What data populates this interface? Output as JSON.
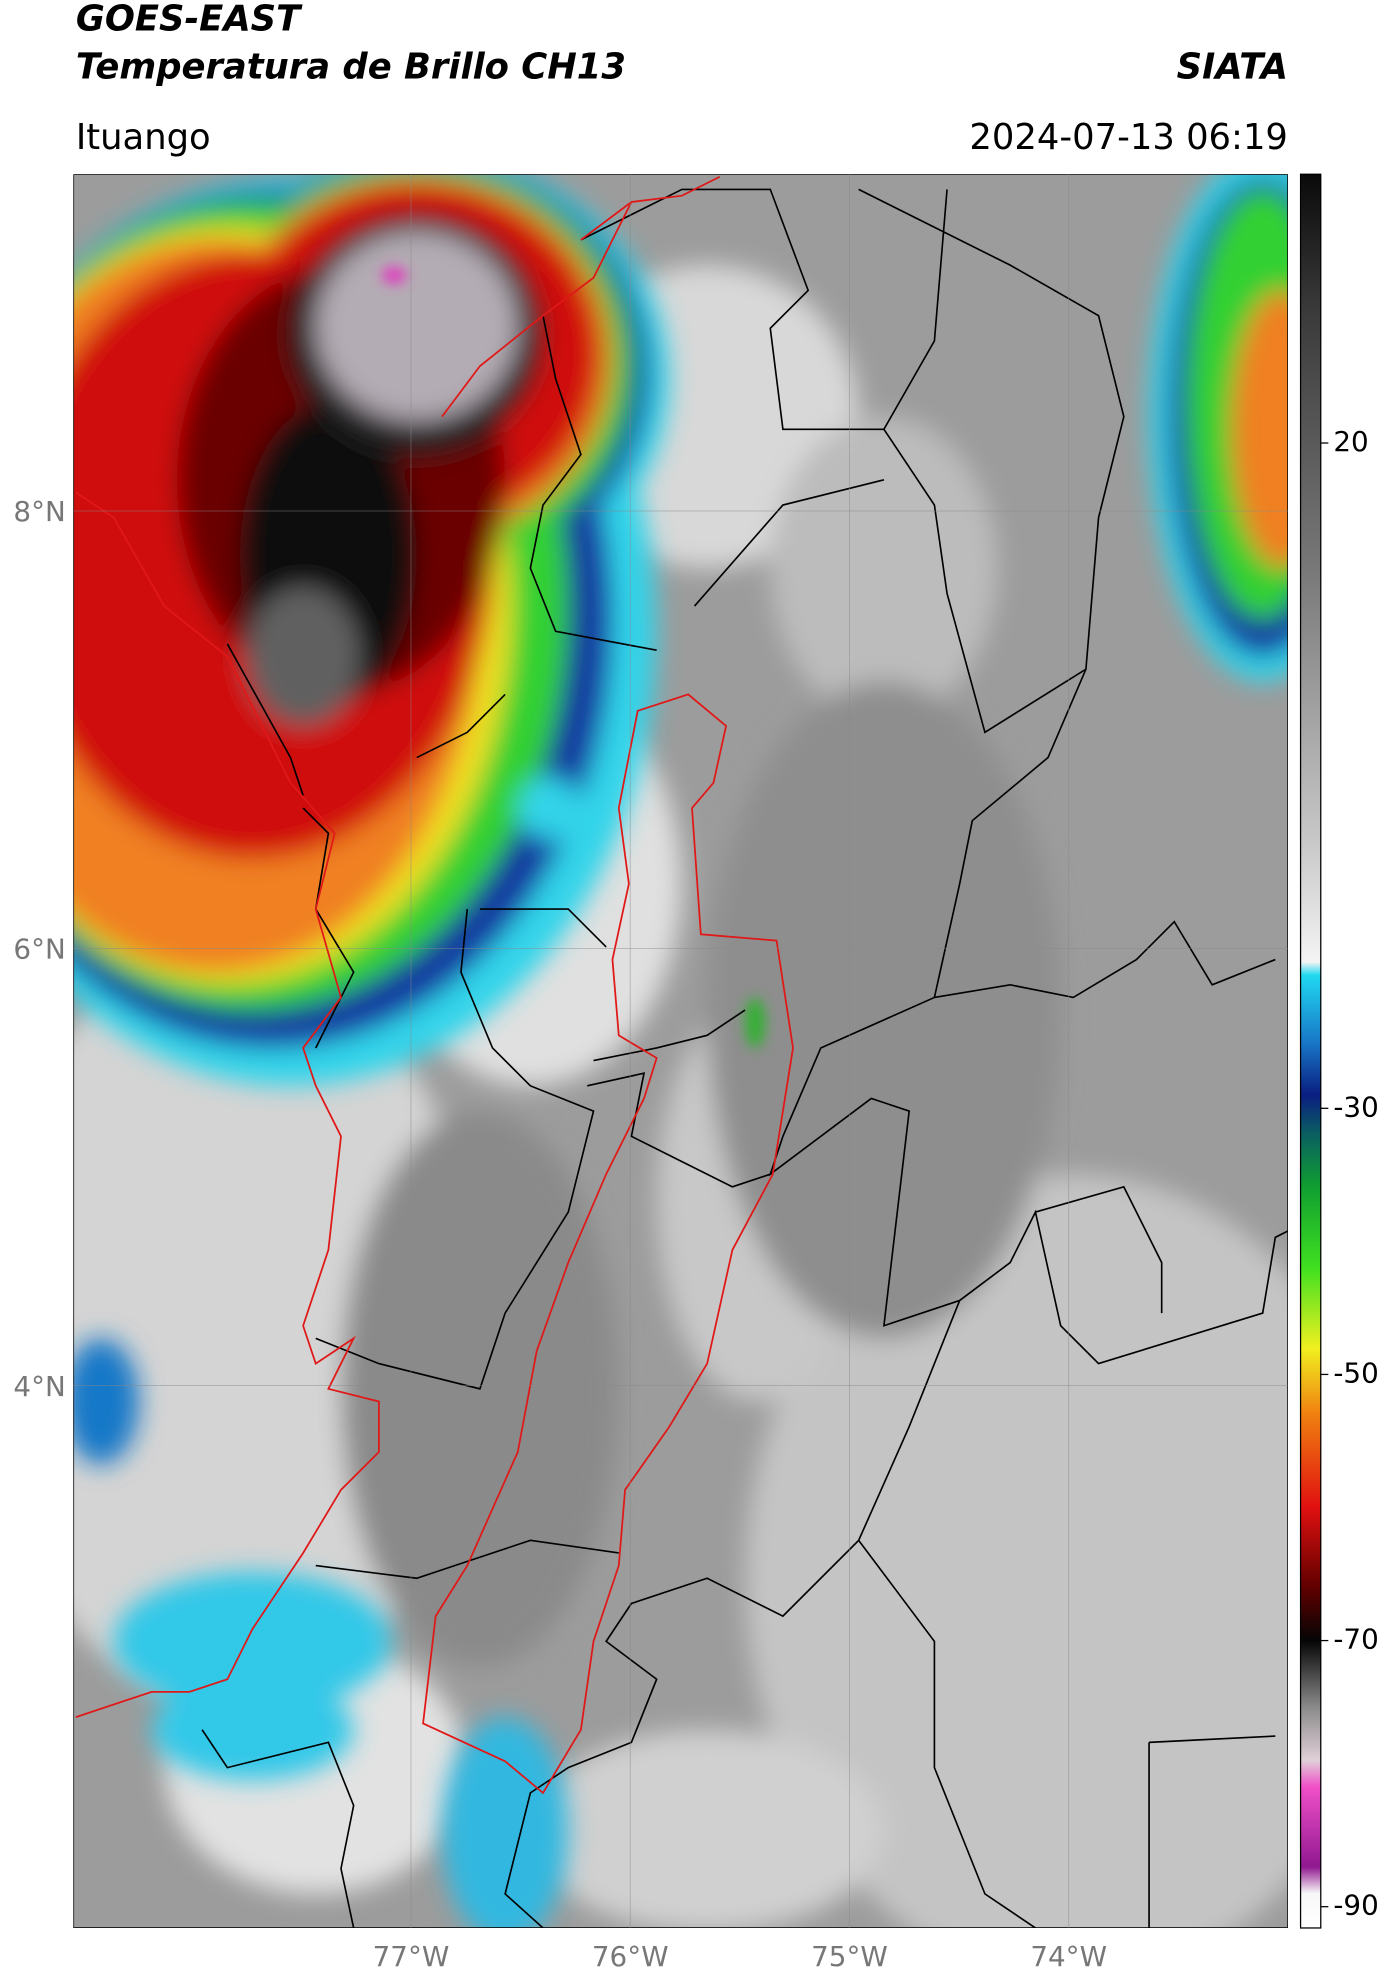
{
  "header": {
    "title": "GOES-EAST",
    "subtitle": "Temperatura de Brillo CH13",
    "brand": "SIATA",
    "location": "Ituango",
    "timestamp": "2024-07-13 06:19"
  },
  "map": {
    "xlim": [
      -78.54,
      -73.0
    ],
    "ylim": [
      1.52,
      9.54
    ],
    "xticks": [
      {
        "value": -77,
        "label": "77°W"
      },
      {
        "value": -76,
        "label": "76°W"
      },
      {
        "value": -75,
        "label": "75°W"
      },
      {
        "value": -74,
        "label": "74°W"
      }
    ],
    "yticks": [
      {
        "value": 8,
        "label": "8°N"
      },
      {
        "value": 6,
        "label": "6°N"
      },
      {
        "value": 4,
        "label": "4°N"
      }
    ],
    "grid": true
  },
  "colorbar": {
    "clim": [
      -91.6,
      40.2
    ],
    "ticks": [
      20,
      -30,
      -50,
      -70,
      -90
    ],
    "colormap": [
      {
        "value": 40.2,
        "color": "#0a0a0a"
      },
      {
        "value": 30,
        "color": "#3a3a3a"
      },
      {
        "value": 10,
        "color": "#7a7a7a"
      },
      {
        "value": -10,
        "color": "#c8c8c8"
      },
      {
        "value": -19,
        "color": "#f4f4f4"
      },
      {
        "value": -20,
        "color": "#20d8f0"
      },
      {
        "value": -25,
        "color": "#1878c8"
      },
      {
        "value": -29,
        "color": "#0a1e80"
      },
      {
        "value": -32,
        "color": "#0a6060"
      },
      {
        "value": -36,
        "color": "#10a030"
      },
      {
        "value": -42,
        "color": "#40e020"
      },
      {
        "value": -48,
        "color": "#f0f020"
      },
      {
        "value": -53,
        "color": "#f08010"
      },
      {
        "value": -60,
        "color": "#e01010"
      },
      {
        "value": -66,
        "color": "#600000"
      },
      {
        "value": -70,
        "color": "#050505"
      },
      {
        "value": -75,
        "color": "#8a8a8a"
      },
      {
        "value": -79,
        "color": "#e0d0d8"
      },
      {
        "value": -81,
        "color": "#f050c8"
      },
      {
        "value": -87,
        "color": "#901890"
      },
      {
        "value": -89,
        "color": "#f8f8f8"
      },
      {
        "value": -91.6,
        "color": "#ffffff"
      }
    ]
  }
}
